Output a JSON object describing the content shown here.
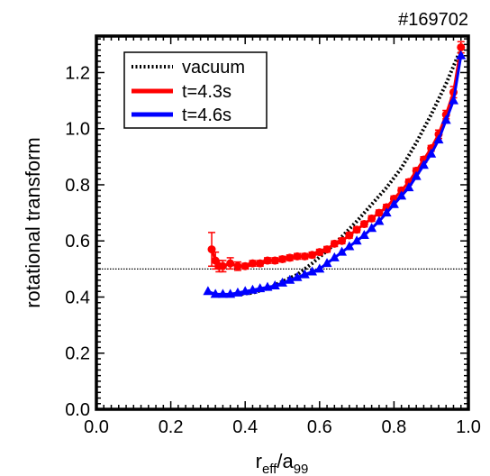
{
  "chart_data": {
    "type": "line",
    "title": "#169702",
    "xlabel": {
      "main": "r",
      "sub1": "eff",
      "mid": "/a",
      "sub2": "99"
    },
    "ylabel": "rotational transform",
    "xlim": [
      0.0,
      1.0
    ],
    "ylim": [
      0.0,
      1.33
    ],
    "xticks": [
      "0.0",
      "0.2",
      "0.4",
      "0.6",
      "0.8",
      "1.0"
    ],
    "yticks": [
      "0.0",
      "0.2",
      "0.4",
      "0.6",
      "0.8",
      "1.0",
      "1.2"
    ],
    "legend_position": "top-left",
    "reference_line": {
      "y": 0.5,
      "style": "dotted"
    },
    "series": [
      {
        "name": "vacuum",
        "color": "#000000",
        "style": "dotted",
        "x": [
          0.38,
          0.42,
          0.46,
          0.5,
          0.54,
          0.58,
          0.62,
          0.66,
          0.7,
          0.74,
          0.78,
          0.82,
          0.86,
          0.9,
          0.94,
          0.98
        ],
        "y": [
          0.41,
          0.415,
          0.43,
          0.455,
          0.48,
          0.52,
          0.565,
          0.615,
          0.67,
          0.73,
          0.79,
          0.86,
          0.95,
          1.05,
          1.16,
          1.285
        ]
      },
      {
        "name": "t=4.3s",
        "color": "#ff0000",
        "marker": "circle",
        "x": [
          0.31,
          0.32,
          0.33,
          0.34,
          0.36,
          0.38,
          0.4,
          0.42,
          0.44,
          0.46,
          0.48,
          0.5,
          0.52,
          0.54,
          0.56,
          0.58,
          0.6,
          0.62,
          0.64,
          0.66,
          0.68,
          0.7,
          0.72,
          0.74,
          0.76,
          0.78,
          0.8,
          0.82,
          0.84,
          0.86,
          0.88,
          0.9,
          0.92,
          0.94,
          0.96,
          0.98
        ],
        "y": [
          0.57,
          0.53,
          0.51,
          0.51,
          0.52,
          0.51,
          0.51,
          0.52,
          0.52,
          0.53,
          0.53,
          0.535,
          0.54,
          0.545,
          0.545,
          0.55,
          0.56,
          0.57,
          0.59,
          0.6,
          0.62,
          0.64,
          0.66,
          0.68,
          0.7,
          0.72,
          0.75,
          0.78,
          0.81,
          0.85,
          0.89,
          0.93,
          0.98,
          1.05,
          1.13,
          1.29
        ],
        "yerr": [
          0.06,
          0.03,
          0.02,
          0.02,
          0.02,
          0.015,
          0.01,
          0.01,
          0.01,
          0.01,
          0.01,
          0.01,
          0.01,
          0.01,
          0.01,
          0.01,
          0.01,
          0.01,
          0.01,
          0.01,
          0.01,
          0.01,
          0.01,
          0.01,
          0.01,
          0.01,
          0.01,
          0.01,
          0.01,
          0.01,
          0.01,
          0.01,
          0.015,
          0.015,
          0.02,
          0.02
        ]
      },
      {
        "name": "t=4.6s",
        "color": "#0000ff",
        "marker": "triangle",
        "x": [
          0.3,
          0.32,
          0.34,
          0.36,
          0.38,
          0.4,
          0.42,
          0.44,
          0.46,
          0.48,
          0.5,
          0.52,
          0.54,
          0.56,
          0.58,
          0.6,
          0.62,
          0.64,
          0.66,
          0.68,
          0.7,
          0.72,
          0.74,
          0.76,
          0.78,
          0.8,
          0.82,
          0.84,
          0.86,
          0.88,
          0.9,
          0.92,
          0.94,
          0.96,
          0.98
        ],
        "y": [
          0.42,
          0.41,
          0.41,
          0.41,
          0.415,
          0.42,
          0.425,
          0.43,
          0.435,
          0.44,
          0.45,
          0.46,
          0.47,
          0.48,
          0.49,
          0.5,
          0.52,
          0.54,
          0.56,
          0.58,
          0.6,
          0.62,
          0.645,
          0.67,
          0.7,
          0.73,
          0.76,
          0.79,
          0.83,
          0.87,
          0.91,
          0.96,
          1.03,
          1.1,
          1.26
        ]
      }
    ]
  }
}
